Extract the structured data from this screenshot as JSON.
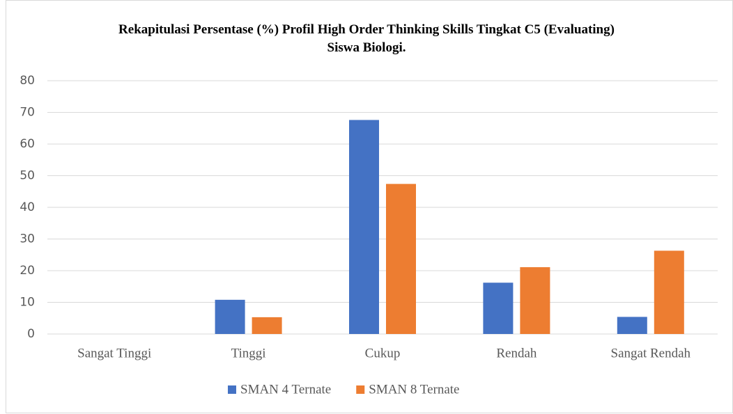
{
  "chart_data": {
    "type": "bar",
    "title": "Rekapitulasi Persentase (%) Profil High Order Thinking Skills Tingkat C5 (Evaluating) Siswa Biologi.",
    "categories": [
      "Sangat Tinggi",
      "Tinggi",
      "Cukup",
      "Rendah",
      "Sangat Rendah"
    ],
    "series": [
      {
        "name": "SMAN 4 Ternate",
        "color": "#4472c4",
        "values": [
          0,
          10.8,
          67.6,
          16.2,
          5.4
        ]
      },
      {
        "name": "SMAN 8 Ternate",
        "color": "#ed7d31",
        "values": [
          0,
          5.3,
          47.4,
          21.1,
          26.3
        ]
      }
    ],
    "ylim": [
      0,
      80
    ],
    "yticks": [
      0,
      10,
      20,
      30,
      40,
      50,
      60,
      70,
      80
    ],
    "grid": true,
    "legend": "bottom"
  }
}
